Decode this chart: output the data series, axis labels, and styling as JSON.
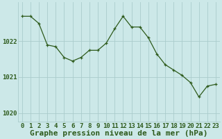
{
  "x": [
    0,
    1,
    2,
    3,
    4,
    5,
    6,
    7,
    8,
    9,
    10,
    11,
    12,
    13,
    14,
    15,
    16,
    17,
    18,
    19,
    20,
    21,
    22,
    23
  ],
  "y": [
    1022.7,
    1022.7,
    1022.5,
    1021.9,
    1021.85,
    1021.55,
    1021.45,
    1021.55,
    1021.75,
    1021.75,
    1021.95,
    1022.35,
    1022.7,
    1022.4,
    1022.4,
    1022.1,
    1021.65,
    1021.35,
    1021.2,
    1021.05,
    1020.85,
    1020.45,
    1020.75,
    1020.8
  ],
  "line_color": "#2d5a1b",
  "marker_color": "#2d5a1b",
  "bg_color": "#cce8e8",
  "grid_color_major": "#aacccc",
  "grid_color_minor": "#bbdddd",
  "text_color": "#2d5a1b",
  "xlabel": "Graphe pression niveau de la mer (hPa)",
  "yticks": [
    1020,
    1021,
    1022
  ],
  "ylim": [
    1019.75,
    1023.1
  ],
  "xlim": [
    -0.5,
    23.5
  ],
  "xlabel_fontsize": 8,
  "tick_fontsize": 6.5
}
